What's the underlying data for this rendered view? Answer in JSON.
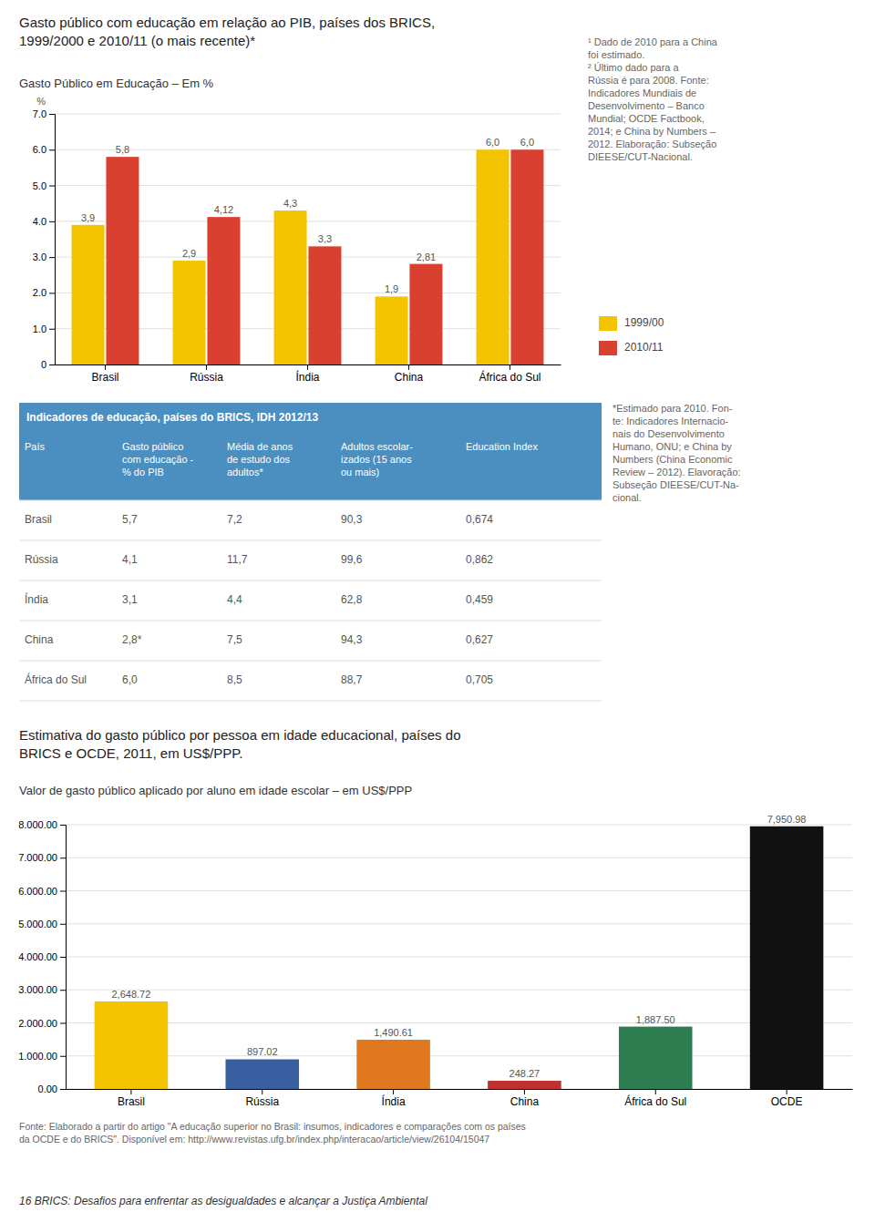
{
  "chart_data": [
    {
      "type": "bar",
      "title": "Gasto público com educação em relação ao PIB, países dos BRICS,\n1999/2000 e 2010/11 (o mais recente)*",
      "subtitle": "Gasto Público em Educação – Em %",
      "y_label": "%",
      "categories": [
        "Brasil",
        "Rússia",
        "Índia",
        "China",
        "África do Sul"
      ],
      "series": [
        {
          "name": "1999/00",
          "color": "#F5C400",
          "values": [
            3.9,
            2.9,
            4.3,
            1.9,
            6.0
          ],
          "value_labels": [
            "3,9",
            "2,9",
            "4,3",
            "1,9",
            "6,0"
          ]
        },
        {
          "name": "2010/11",
          "color": "#D94030",
          "values": [
            5.8,
            4.12,
            3.3,
            2.81,
            6.0
          ],
          "value_labels": [
            "5,8",
            "4,12",
            "3,3",
            "2,81",
            "6,0"
          ]
        }
      ],
      "ylim": [
        0,
        7.0
      ],
      "yticks": [
        0,
        {
          "value": 1.0,
          "label": "1.0"
        },
        {
          "value": 2.0,
          "label": "2.0"
        },
        {
          "value": 3.0,
          "label": "3.0"
        },
        {
          "value": 4.0,
          "label": "4.0"
        },
        {
          "value": 5.0,
          "label": "5.0"
        },
        {
          "value": 6.0,
          "label": "6.0"
        },
        {
          "value": 7.0,
          "label": "7.0"
        }
      ],
      "grid": true,
      "data_labels": true,
      "legend": "right",
      "note": "¹ Dado de 2010 para a China\nfoi estimado.\n² Último dado para a\nRússia é para 2008. Fonte:\nIndicadores Mundiais de\nDesenvolvimento – Banco\nMundial; OCDE Factbook,\n2014; e China by Numbers –\n2012. Elaboração: Subseção\nDIEESE/CUT-Nacional."
    },
    {
      "type": "table",
      "title": "Indicadores de educação, países do BRICS, IDH 2012/13",
      "header_color": "#4A8FBF",
      "columns": [
        "País",
        "Gasto público\ncom educação -\n% do PIB",
        "Média de anos\nde estudo dos\nadultos*",
        "Adultos escolar-\nizados (15 anos\nou mais)",
        "Education Index"
      ],
      "rows": [
        [
          "Brasil",
          "5,7",
          "7,2",
          "90,3",
          "0,674"
        ],
        [
          "Rússia",
          "4,1",
          "11,7",
          "99,6",
          "0,862"
        ],
        [
          "Índia",
          "3,1",
          "4,4",
          "62,8",
          "0,459"
        ],
        [
          "China",
          "2,8*",
          "7,5",
          "94,3",
          "0,627"
        ],
        [
          "África do Sul",
          "6,0",
          "8,5",
          "88,7",
          "0,705"
        ]
      ],
      "note": "*Estimado para 2010. Fon-\nte: Indicadores Internacio-\nnais do Desenvolvimento\nHumano, ONU; e China by\nNumbers (China Economic\nReview – 2012). Elavoração:\nSubseção DIEESE/CUT-Na-\ncional."
    },
    {
      "type": "bar",
      "title": "Estimativa do gasto público por pessoa em idade educacional, países do\nBRICS e OCDE, 2011, em US$/PPP.",
      "subtitle": "Valor de gasto público aplicado por aluno em idade escolar – em US$/PPP",
      "categories": [
        "Brasil",
        "Rússia",
        "Índia",
        "China",
        "África do Sul",
        "OCDE"
      ],
      "values": [
        2648.72,
        897.02,
        1490.61,
        248.27,
        1887.5,
        7950.98
      ],
      "value_labels": [
        "2,648.72",
        "897.02",
        "1,490.61",
        "248.27",
        "1,887.50",
        "7,950.98"
      ],
      "colors": [
        "#F5C400",
        "#3A5FA0",
        "#E07820",
        "#C03030",
        "#2E7D50",
        "#111111"
      ],
      "ylim": [
        0,
        8000
      ],
      "yticks": [
        {
          "value": 0,
          "label": "0.00"
        },
        {
          "value": 1000,
          "label": "1.000.00"
        },
        {
          "value": 2000,
          "label": "2.000.00"
        },
        {
          "value": 3000,
          "label": "3.000.00"
        },
        {
          "value": 4000,
          "label": "4.000.00"
        },
        {
          "value": 5000,
          "label": "5.000.00"
        },
        {
          "value": 6000,
          "label": "6.000.00"
        },
        {
          "value": 7000,
          "label": "7.000.00"
        },
        {
          "value": 8000,
          "label": "8.000.00"
        }
      ],
      "grid": true,
      "data_labels": true,
      "source": "Fonte: Elaborado a partir do artigo \"A educação superior no Brasil: insumos, indicadores e comparações com os países\nda OCDE e do BRICS\". Disponível em: http://www.revistas.ufg.br/index.php/interacao/article/view/26104/15047",
      "footer": "16 BRICS: Desafios para enfrentar as desigualdades e alcançar a Justiça Ambiental"
    }
  ]
}
